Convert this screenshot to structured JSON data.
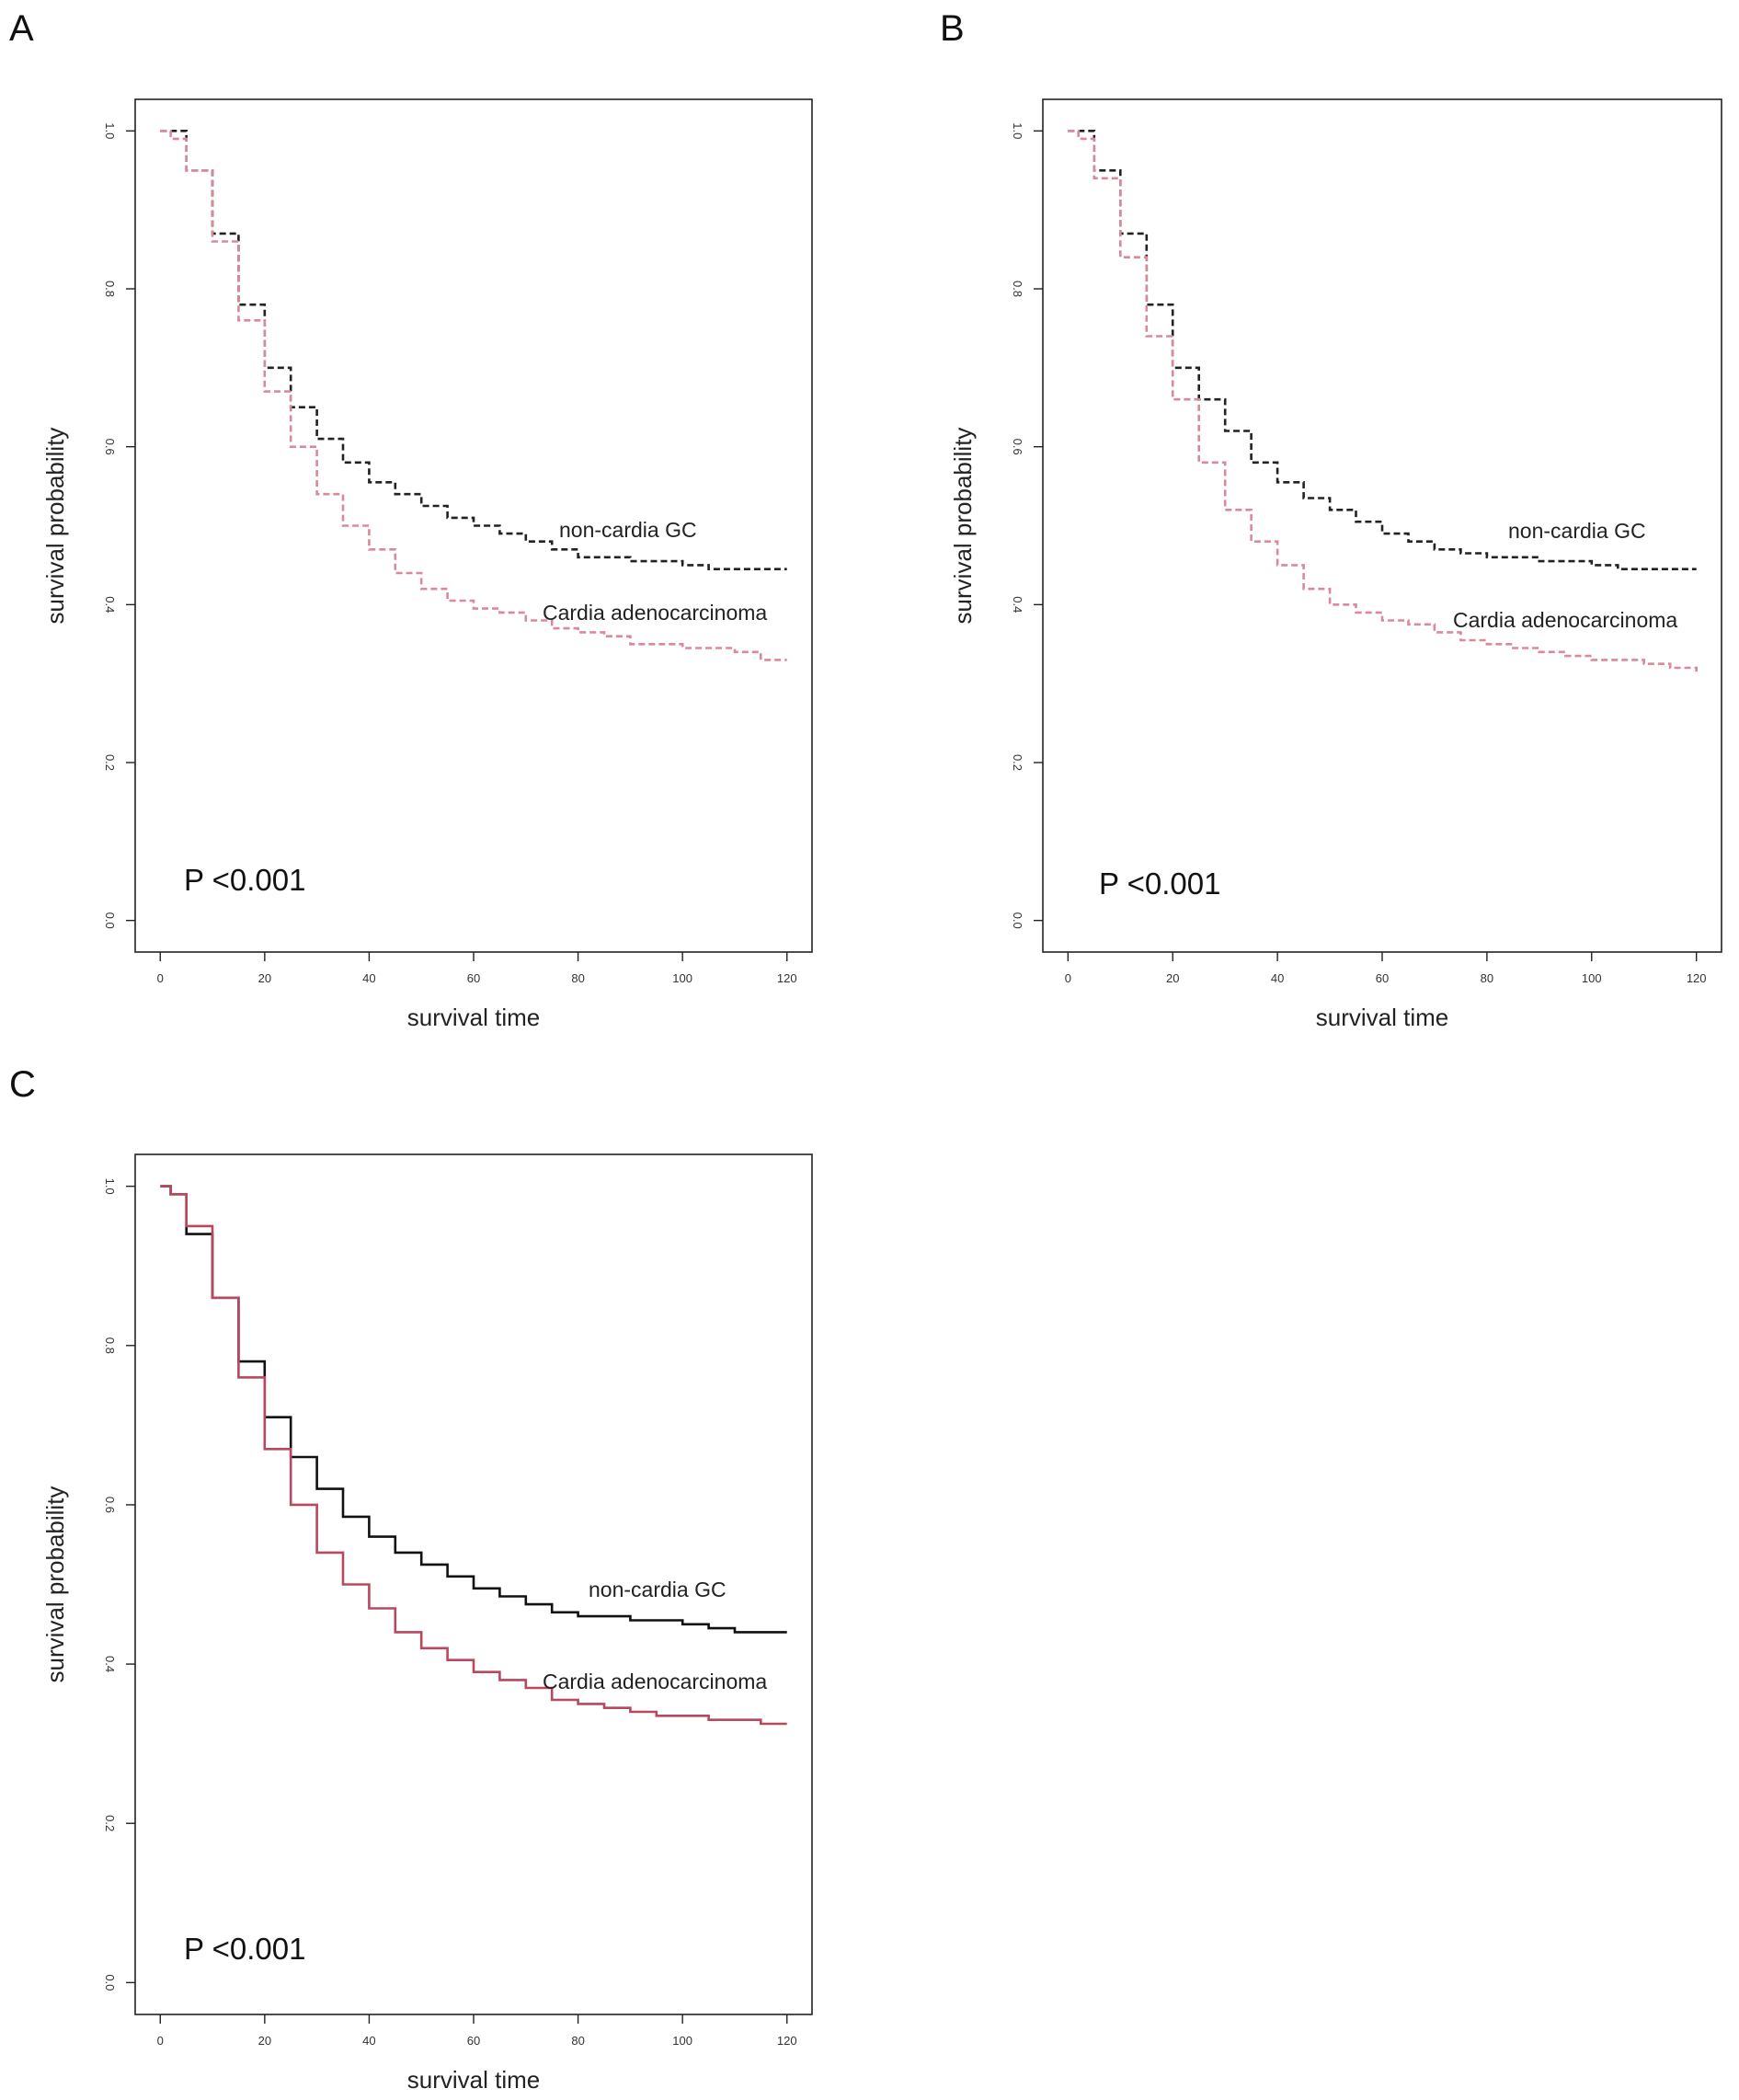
{
  "chart_data": [
    {
      "panel": "A",
      "type": "line",
      "xlabel": "survival time",
      "ylabel": "survival probability",
      "xlim": [
        0,
        120
      ],
      "ylim": [
        0,
        1
      ],
      "xticks": [
        "0",
        "20",
        "40",
        "60",
        "80",
        "100",
        "120"
      ],
      "yticks": [
        "0.0",
        "0.2",
        "0.4",
        "0.6",
        "0.8",
        "1.0"
      ],
      "line_style": "dashed",
      "annotation": "P <0.001",
      "series": [
        {
          "name": "non-cardia GC",
          "color": "#222222",
          "x": [
            0,
            2,
            5,
            10,
            15,
            20,
            25,
            30,
            35,
            40,
            45,
            50,
            55,
            60,
            65,
            70,
            75,
            80,
            90,
            100,
            105,
            110,
            120
          ],
          "y": [
            1.0,
            1.0,
            0.95,
            0.87,
            0.78,
            0.7,
            0.65,
            0.61,
            0.58,
            0.555,
            0.54,
            0.525,
            0.51,
            0.5,
            0.49,
            0.48,
            0.47,
            0.46,
            0.455,
            0.45,
            0.445,
            0.445,
            0.445
          ]
        },
        {
          "name": "Cardia adenocarcinoma",
          "color": "#d98a9a",
          "x": [
            0,
            2,
            5,
            10,
            15,
            20,
            25,
            30,
            35,
            40,
            45,
            50,
            55,
            60,
            65,
            70,
            75,
            80,
            85,
            90,
            100,
            105,
            110,
            115,
            120
          ],
          "y": [
            1.0,
            0.99,
            0.95,
            0.86,
            0.76,
            0.67,
            0.6,
            0.54,
            0.5,
            0.47,
            0.44,
            0.42,
            0.405,
            0.395,
            0.39,
            0.38,
            0.37,
            0.365,
            0.36,
            0.35,
            0.345,
            0.345,
            0.34,
            0.33,
            0.33
          ]
        }
      ]
    },
    {
      "panel": "B",
      "type": "line",
      "xlabel": "survival time",
      "ylabel": "survival probability",
      "xlim": [
        0,
        120
      ],
      "ylim": [
        0,
        1
      ],
      "xticks": [
        "0",
        "20",
        "40",
        "60",
        "80",
        "100",
        "120"
      ],
      "yticks": [
        "0.0",
        "0.2",
        "0.4",
        "0.6",
        "0.8",
        "1.0"
      ],
      "line_style": "dashed",
      "annotation": "P <0.001",
      "series": [
        {
          "name": "non-cardia GC",
          "color": "#222222",
          "x": [
            0,
            2,
            5,
            10,
            15,
            20,
            25,
            30,
            35,
            40,
            45,
            50,
            55,
            60,
            65,
            70,
            75,
            80,
            90,
            100,
            105,
            110,
            120
          ],
          "y": [
            1.0,
            1.0,
            0.95,
            0.87,
            0.78,
            0.7,
            0.66,
            0.62,
            0.58,
            0.555,
            0.535,
            0.52,
            0.505,
            0.49,
            0.48,
            0.47,
            0.465,
            0.46,
            0.455,
            0.45,
            0.445,
            0.445,
            0.445
          ]
        },
        {
          "name": "Cardia adenocarcinoma",
          "color": "#d98a9a",
          "x": [
            0,
            2,
            5,
            10,
            15,
            20,
            25,
            30,
            35,
            40,
            45,
            50,
            55,
            60,
            65,
            70,
            75,
            80,
            85,
            90,
            95,
            100,
            110,
            115,
            120
          ],
          "y": [
            1.0,
            0.99,
            0.94,
            0.84,
            0.74,
            0.66,
            0.58,
            0.52,
            0.48,
            0.45,
            0.42,
            0.4,
            0.39,
            0.38,
            0.375,
            0.365,
            0.355,
            0.35,
            0.345,
            0.34,
            0.335,
            0.33,
            0.325,
            0.32,
            0.315
          ]
        }
      ]
    },
    {
      "panel": "C",
      "type": "line",
      "xlabel": "survival time",
      "ylabel": "survival probability",
      "xlim": [
        0,
        120
      ],
      "ylim": [
        0,
        1
      ],
      "xticks": [
        "0",
        "20",
        "40",
        "60",
        "80",
        "100",
        "120"
      ],
      "yticks": [
        "0.0",
        "0.2",
        "0.4",
        "0.6",
        "0.8",
        "1.0"
      ],
      "line_style": "solid-step",
      "annotation": "P <0.001",
      "series": [
        {
          "name": "non-cardia GC",
          "color": "#111111",
          "x": [
            0,
            1,
            2,
            5,
            10,
            15,
            20,
            25,
            30,
            35,
            40,
            45,
            50,
            55,
            60,
            65,
            70,
            75,
            80,
            90,
            100,
            105,
            110,
            120
          ],
          "y": [
            1.0,
            1.0,
            0.99,
            0.94,
            0.86,
            0.78,
            0.71,
            0.66,
            0.62,
            0.585,
            0.56,
            0.54,
            0.525,
            0.51,
            0.495,
            0.485,
            0.475,
            0.465,
            0.46,
            0.455,
            0.45,
            0.445,
            0.44,
            0.44
          ]
        },
        {
          "name": "Cardia adenocarcinoma",
          "color": "#b8485e",
          "x": [
            0,
            2,
            5,
            10,
            15,
            20,
            25,
            30,
            35,
            40,
            45,
            50,
            55,
            60,
            65,
            70,
            75,
            80,
            85,
            90,
            95,
            100,
            105,
            110,
            115,
            120
          ],
          "y": [
            1.0,
            0.99,
            0.95,
            0.86,
            0.76,
            0.67,
            0.6,
            0.54,
            0.5,
            0.47,
            0.44,
            0.42,
            0.405,
            0.39,
            0.38,
            0.37,
            0.355,
            0.35,
            0.345,
            0.34,
            0.335,
            0.335,
            0.33,
            0.33,
            0.325,
            0.325
          ]
        }
      ]
    }
  ]
}
